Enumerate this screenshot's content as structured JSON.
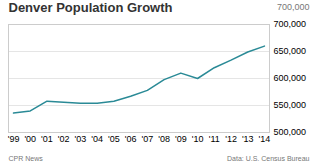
{
  "chart_data": {
    "type": "line",
    "title": "Denver Population Growth",
    "annotations": [
      "700,000",
      "CPR News",
      "Data: U.S. Census Bureau"
    ],
    "x": [
      1999,
      2000,
      2001,
      2002,
      2003,
      2004,
      2005,
      2006,
      2007,
      2008,
      2009,
      2010,
      2011,
      2012,
      2013,
      2014
    ],
    "values": [
      536000,
      540000,
      558000,
      556000,
      554000,
      554000,
      558000,
      567000,
      578000,
      598000,
      610000,
      600000,
      620000,
      634000,
      649000,
      660000
    ],
    "color": "#2a8a96",
    "xlim": [
      1998.7,
      2014.3
    ],
    "xticks": [
      {
        "value": 1999,
        "label": "'99"
      },
      {
        "value": 2000,
        "label": "'00"
      },
      {
        "value": 2001,
        "label": "'01"
      },
      {
        "value": 2002,
        "label": "'02"
      },
      {
        "value": 2003,
        "label": "'03"
      },
      {
        "value": 2004,
        "label": "'04"
      },
      {
        "value": 2005,
        "label": "'05"
      },
      {
        "value": 2006,
        "label": "'06"
      },
      {
        "value": 2007,
        "label": "'07"
      },
      {
        "value": 2008,
        "label": "'08"
      },
      {
        "value": 2009,
        "label": "'09"
      },
      {
        "value": 2010,
        "label": "'10"
      },
      {
        "value": 2011,
        "label": "'11"
      },
      {
        "value": 2012,
        "label": "'12"
      },
      {
        "value": 2013,
        "label": "'13"
      },
      {
        "value": 2014,
        "label": "'14"
      }
    ],
    "ylim": [
      500000,
      700000
    ],
    "yticks": [
      {
        "value": 500000,
        "label": "500,000"
      },
      {
        "value": 550000,
        "label": "550,000"
      },
      {
        "value": 600000,
        "label": "600,000"
      },
      {
        "value": 650000,
        "label": "650,000"
      },
      {
        "value": 700000,
        "label": "700,000"
      }
    ],
    "grid": true
  }
}
